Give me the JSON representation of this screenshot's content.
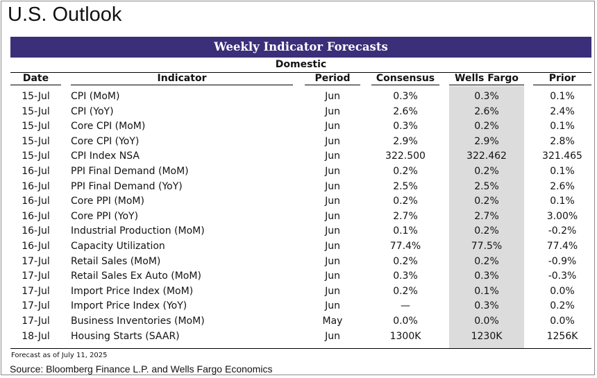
{
  "page_title": "U.S. Outlook",
  "banner": "Weekly Indicator Forecasts",
  "section": "Domestic",
  "columns": {
    "date": "Date",
    "indicator": "Indicator",
    "period": "Period",
    "consensus": "Consensus",
    "wells_fargo": "Wells Fargo",
    "prior": "Prior"
  },
  "rows": [
    {
      "date": "15-Jul",
      "indicator": "CPI (MoM)",
      "period": "Jun",
      "consensus": "0.3%",
      "wells_fargo": "0.3%",
      "prior": "0.1%"
    },
    {
      "date": "15-Jul",
      "indicator": "CPI (YoY)",
      "period": "Jun",
      "consensus": "2.6%",
      "wells_fargo": "2.6%",
      "prior": "2.4%"
    },
    {
      "date": "15-Jul",
      "indicator": "Core CPI (MoM)",
      "period": "Jun",
      "consensus": "0.3%",
      "wells_fargo": "0.2%",
      "prior": "0.1%"
    },
    {
      "date": "15-Jul",
      "indicator": "Core CPI (YoY)",
      "period": "Jun",
      "consensus": "2.9%",
      "wells_fargo": "2.9%",
      "prior": "2.8%"
    },
    {
      "date": "15-Jul",
      "indicator": "CPI Index NSA",
      "period": "Jun",
      "consensus": "322.500",
      "wells_fargo": "322.462",
      "prior": "321.465"
    },
    {
      "date": "16-Jul",
      "indicator": "PPI Final Demand (MoM)",
      "period": "Jun",
      "consensus": "0.2%",
      "wells_fargo": "0.2%",
      "prior": "0.1%"
    },
    {
      "date": "16-Jul",
      "indicator": "PPI Final Demand (YoY)",
      "period": "Jun",
      "consensus": "2.5%",
      "wells_fargo": "2.5%",
      "prior": "2.6%"
    },
    {
      "date": "16-Jul",
      "indicator": "Core PPI (MoM)",
      "period": "Jun",
      "consensus": "0.2%",
      "wells_fargo": "0.2%",
      "prior": "0.1%"
    },
    {
      "date": "16-Jul",
      "indicator": "Core PPI (YoY)",
      "period": "Jun",
      "consensus": "2.7%",
      "wells_fargo": "2.7%",
      "prior": "3.00%"
    },
    {
      "date": "16-Jul",
      "indicator": "Industrial Production (MoM)",
      "period": "Jun",
      "consensus": "0.1%",
      "wells_fargo": "0.2%",
      "prior": "-0.2%"
    },
    {
      "date": "16-Jul",
      "indicator": "Capacity Utilization",
      "period": "Jun",
      "consensus": "77.4%",
      "wells_fargo": "77.5%",
      "prior": "77.4%"
    },
    {
      "date": "17-Jul",
      "indicator": "Retail Sales (MoM)",
      "period": "Jun",
      "consensus": "0.2%",
      "wells_fargo": "0.2%",
      "prior": "-0.9%"
    },
    {
      "date": "17-Jul",
      "indicator": "Retail Sales Ex Auto (MoM)",
      "period": "Jun",
      "consensus": "0.3%",
      "wells_fargo": "0.3%",
      "prior": "-0.3%"
    },
    {
      "date": "17-Jul",
      "indicator": "Import Price Index (MoM)",
      "period": "Jun",
      "consensus": "0.2%",
      "wells_fargo": "0.1%",
      "prior": "0.0%"
    },
    {
      "date": "17-Jul",
      "indicator": "Import Price Index (YoY)",
      "period": "Jun",
      "consensus": "—",
      "wells_fargo": "0.3%",
      "prior": "0.2%"
    },
    {
      "date": "17-Jul",
      "indicator": "Business Inventories (MoM)",
      "period": "May",
      "consensus": "0.0%",
      "wells_fargo": "0.0%",
      "prior": "0.0%"
    },
    {
      "date": "18-Jul",
      "indicator": "Housing Starts (SAAR)",
      "period": "Jun",
      "consensus": "1300K",
      "wells_fargo": "1230K",
      "prior": "1256K"
    }
  ],
  "footnote": "Forecast as of July 11, 2025",
  "source": "Source: Bloomberg Finance L.P. and Wells Fargo Economics",
  "colors": {
    "banner": "#3b2f7a",
    "wells_fargo_shading": "#dcdcdc"
  }
}
